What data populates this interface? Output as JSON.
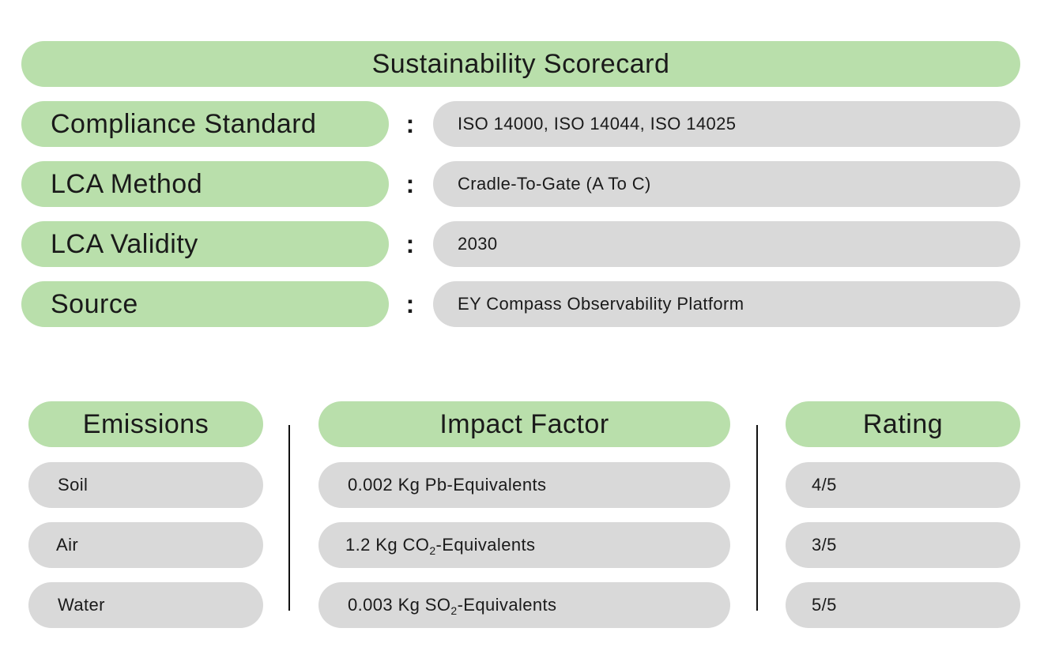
{
  "title": "Sustainability Scorecard",
  "info_rows": [
    {
      "label": "Compliance Standard",
      "separator": ":",
      "value": "ISO 14000, ISO 14044, ISO 14025"
    },
    {
      "label": "LCA Method",
      "separator": ":",
      "value": "Cradle-To-Gate (A To C)"
    },
    {
      "label": "LCA Validity",
      "separator": ":",
      "value": "2030"
    },
    {
      "label": "Source",
      "separator": ":",
      "value": "EY Compass Observability Platform"
    }
  ],
  "table": {
    "headers": {
      "emissions": "Emissions",
      "impact": "Impact Factor",
      "rating": "Rating"
    },
    "rows": [
      {
        "emission": "Soil",
        "impact_prefix": "0.002 Kg Pb-Equivalents",
        "impact_sub": "",
        "impact_suffix": "",
        "rating": "4/5"
      },
      {
        "emission": "Air",
        "impact_prefix": "1.2 Kg CO",
        "impact_sub": "2",
        "impact_suffix": "-Equivalents",
        "rating": "3/5"
      },
      {
        "emission": "Water",
        "impact_prefix": "0.003 Kg SO",
        "impact_sub": "2",
        "impact_suffix": "-Equivalents",
        "rating": "5/5"
      }
    ]
  },
  "colors": {
    "green_pill": "#b9dfab",
    "grey_pill": "#d9d9d9",
    "text": "#1a1a1a",
    "divider": "#111111"
  }
}
